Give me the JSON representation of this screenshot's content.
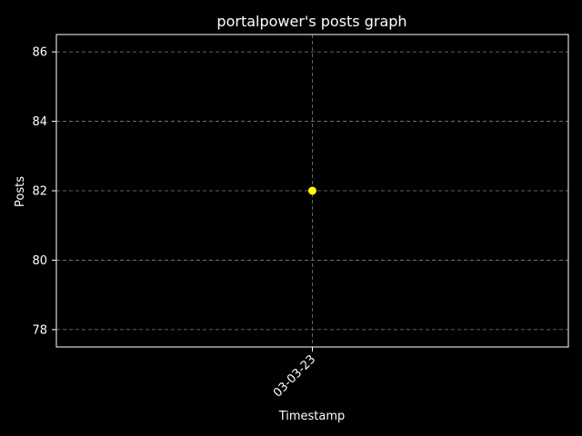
{
  "chart_data": {
    "type": "scatter",
    "title": "portalpower's posts graph",
    "xlabel": "Timestamp",
    "ylabel": "Posts",
    "x_categories": [
      "03-03-23"
    ],
    "points": [
      {
        "x": "03-03-23",
        "y": 82
      }
    ],
    "ylim": [
      77.5,
      86.5
    ],
    "yticks": [
      78,
      80,
      82,
      84,
      86
    ],
    "grid": true,
    "colors": {
      "background": "#000000",
      "axes": "#ffffff",
      "grid": "#808080",
      "marker": "#ffff00",
      "text": "#ffffff"
    }
  }
}
